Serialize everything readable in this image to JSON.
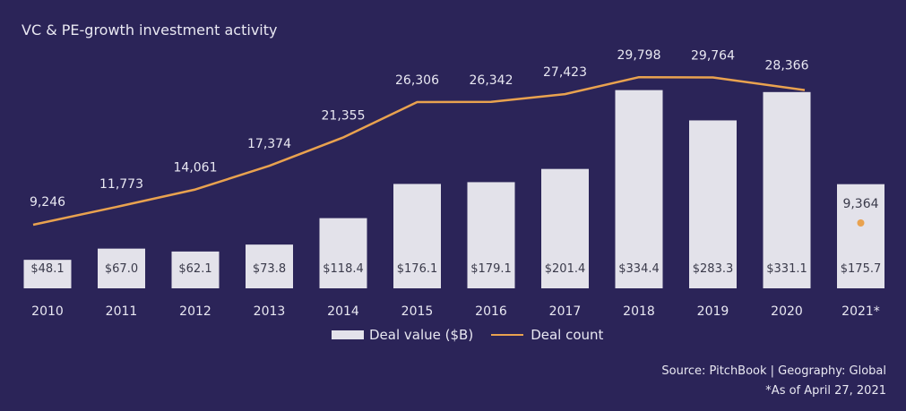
{
  "chart_data": {
    "type": "bar",
    "title": "VC & PE-growth investment activity",
    "categories": [
      "2010",
      "2011",
      "2012",
      "2013",
      "2014",
      "2015",
      "2016",
      "2017",
      "2018",
      "2019",
      "2020",
      "2021*"
    ],
    "series": [
      {
        "name": "Deal value ($B)",
        "type": "bar",
        "values": [
          48.1,
          67.0,
          62.1,
          73.8,
          118.4,
          176.1,
          179.1,
          201.4,
          334.4,
          283.3,
          331.1,
          175.7
        ],
        "labels": [
          "$48.1",
          "$67.0",
          "$62.1",
          "$73.8",
          "$118.4",
          "$176.1",
          "$179.1",
          "$201.4",
          "$334.4",
          "$283.3",
          "$331.1",
          "$175.7"
        ]
      },
      {
        "name": "Deal count",
        "type": "line",
        "values": [
          9246,
          11773,
          14061,
          17374,
          21355,
          26306,
          26342,
          27423,
          29798,
          29764,
          28366,
          9364
        ],
        "labels": [
          "9,246",
          "11,773",
          "14,061",
          "17,374",
          "21,355",
          "26,306",
          "26,342",
          "27,423",
          "29,798",
          "29,764",
          "28,366",
          "9,364"
        ],
        "last_point_as_marker": true
      }
    ],
    "colors": {
      "bar": "#e3e2ea",
      "line": "#e9a24f",
      "background": "#2b2458",
      "bar_label": "#3a3a4a",
      "text": "#e9e8f2"
    },
    "legend_position": "bottom-center",
    "grid": false
  },
  "legend": {
    "bar_label": "Deal value ($B)",
    "line_label": "Deal count"
  },
  "source": {
    "line1": "Source: PitchBook | Geography: Global",
    "line2": "*As of April 27, 2021"
  }
}
